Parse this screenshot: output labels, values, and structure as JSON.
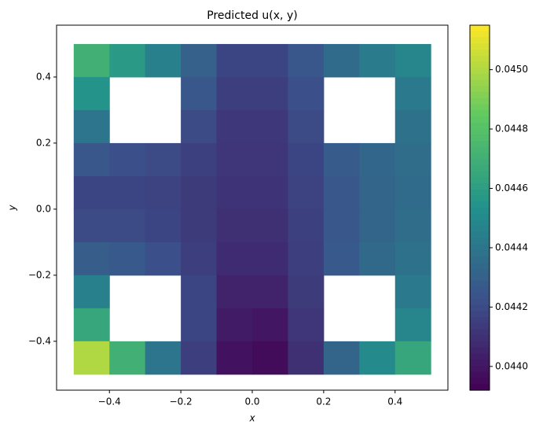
{
  "chart_data": {
    "type": "heatmap",
    "title": "Predicted u(x, y)",
    "x_label": "x",
    "y_label": "y",
    "x": [
      -0.45,
      -0.35,
      -0.25,
      -0.15,
      -0.05,
      0.05,
      0.15,
      0.25,
      0.35,
      0.45
    ],
    "y": [
      0.45,
      0.35,
      0.25,
      0.15,
      0.05,
      -0.05,
      -0.15,
      -0.25,
      -0.35,
      -0.45
    ],
    "z": [
      [
        0.0447,
        0.04458,
        0.04445,
        0.0443,
        0.04418,
        0.04418,
        0.04425,
        0.04435,
        0.04443,
        0.04448
      ],
      [
        0.04455,
        null,
        null,
        0.04425,
        0.04415,
        0.04415,
        0.04422,
        null,
        null,
        0.04442
      ],
      [
        0.0444,
        null,
        null,
        0.0442,
        0.04413,
        0.04413,
        0.0442,
        null,
        null,
        0.04438
      ],
      [
        0.04425,
        0.04422,
        0.0442,
        0.04416,
        0.04412,
        0.04412,
        0.04418,
        0.04427,
        0.04433,
        0.04436
      ],
      [
        0.04418,
        0.04418,
        0.04417,
        0.04414,
        0.04411,
        0.04411,
        0.04417,
        0.04425,
        0.04432,
        0.04435
      ],
      [
        0.0442,
        0.0442,
        0.04418,
        0.04414,
        0.0441,
        0.0441,
        0.04416,
        0.04425,
        0.04432,
        0.04436
      ],
      [
        0.04428,
        0.04426,
        0.04422,
        0.04415,
        0.04408,
        0.04408,
        0.04415,
        0.04426,
        0.04434,
        0.04438
      ],
      [
        0.04445,
        null,
        null,
        0.04418,
        0.04405,
        0.04405,
        0.04414,
        null,
        null,
        0.04442
      ],
      [
        0.04465,
        null,
        null,
        0.04418,
        0.04402,
        0.044,
        0.04412,
        null,
        null,
        0.04448
      ],
      [
        0.045,
        0.0447,
        0.0444,
        0.04415,
        0.04398,
        0.04396,
        0.0441,
        0.04432,
        0.0445,
        0.04465
      ]
    ],
    "colormap": "viridis",
    "xlim": [
      -0.548,
      0.548
    ],
    "ylim": [
      -0.548,
      0.557
    ],
    "xticks": [
      {
        "value": -0.4,
        "label": "−0.4"
      },
      {
        "value": -0.2,
        "label": "−0.2"
      },
      {
        "value": 0,
        "label": "0.0"
      },
      {
        "value": 0.2,
        "label": "0.2"
      },
      {
        "value": 0.4,
        "label": "0.4"
      }
    ],
    "yticks": [
      {
        "value": -0.4,
        "label": "−0.4"
      },
      {
        "value": -0.2,
        "label": "−0.2"
      },
      {
        "value": 0,
        "label": "0.0"
      },
      {
        "value": 0.2,
        "label": "0.2"
      },
      {
        "value": 0.4,
        "label": "0.4"
      }
    ],
    "clim": [
      0.04392,
      0.04515
    ],
    "cticks": [
      {
        "value": 0.044,
        "label": "0.0440"
      },
      {
        "value": 0.0442,
        "label": "0.0442"
      },
      {
        "value": 0.0444,
        "label": "0.0444"
      },
      {
        "value": 0.0446,
        "label": "0.0446"
      },
      {
        "value": 0.0448,
        "label": "0.0448"
      },
      {
        "value": 0.045,
        "label": "0.0450"
      }
    ]
  }
}
